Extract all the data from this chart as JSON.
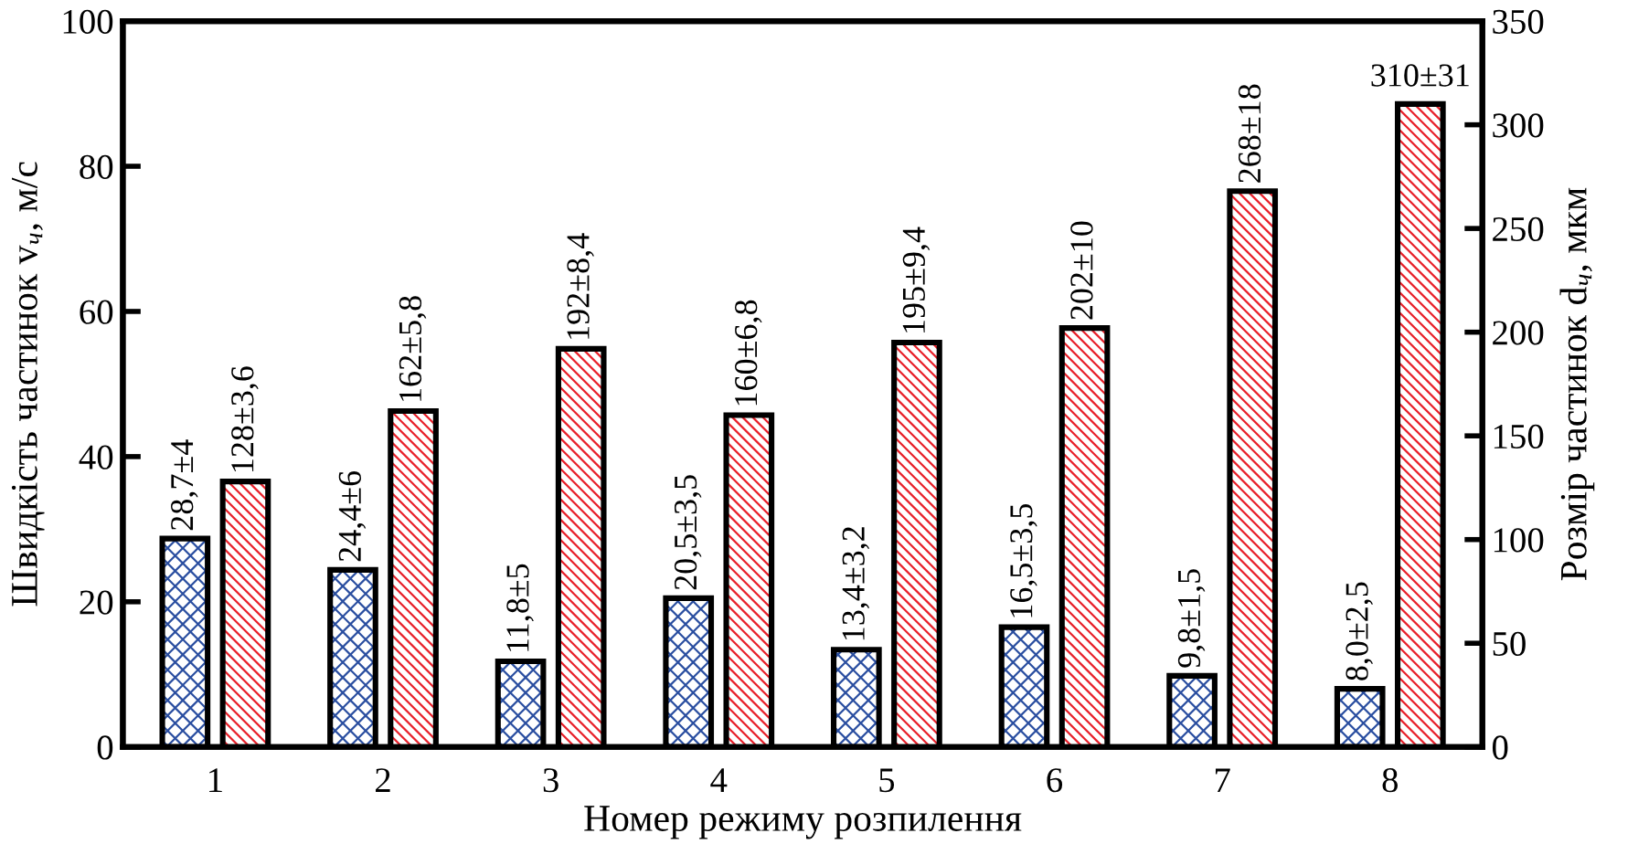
{
  "chart_data": {
    "type": "bar",
    "xlabel": "Номер режиму розпилення",
    "ylabel": "Швидкість частинок v$_{ч}$, м/с",
    "y2label": "Розмір частинок d$_{ч}$, мкм",
    "categories": [
      "1",
      "2",
      "3",
      "4",
      "5",
      "6",
      "7",
      "8"
    ],
    "series": [
      {
        "color": "#2a4ea0",
        "values": [
          28.7,
          24.4,
          11.8,
          20.5,
          13.4,
          16.5,
          9.8,
          8.0
        ],
        "value_labels": [
          "28,7±4",
          "24,4±6",
          "11,8±5",
          "20,5±3,5",
          "13,4±3,2",
          "16,5±3,5",
          "9,8±1,5",
          "8,0±2,5"
        ]
      },
      {
        "color": "#e8202a",
        "axis": "y2",
        "values": [
          128,
          162,
          192,
          160,
          195,
          202,
          268,
          310
        ],
        "value_labels": [
          "128±3,6",
          "162±5,8",
          "192±8,4",
          "160±6,8",
          "195±9,4",
          "202±10",
          "268±18",
          "310±31"
        ]
      }
    ],
    "ylim": [
      0,
      100
    ],
    "yticks": [
      0,
      20,
      40,
      60,
      80,
      100
    ],
    "y2lim": [
      0,
      350
    ],
    "y2ticks": [
      0,
      50,
      100,
      150,
      200,
      250,
      300,
      350
    ],
    "grid": false
  }
}
